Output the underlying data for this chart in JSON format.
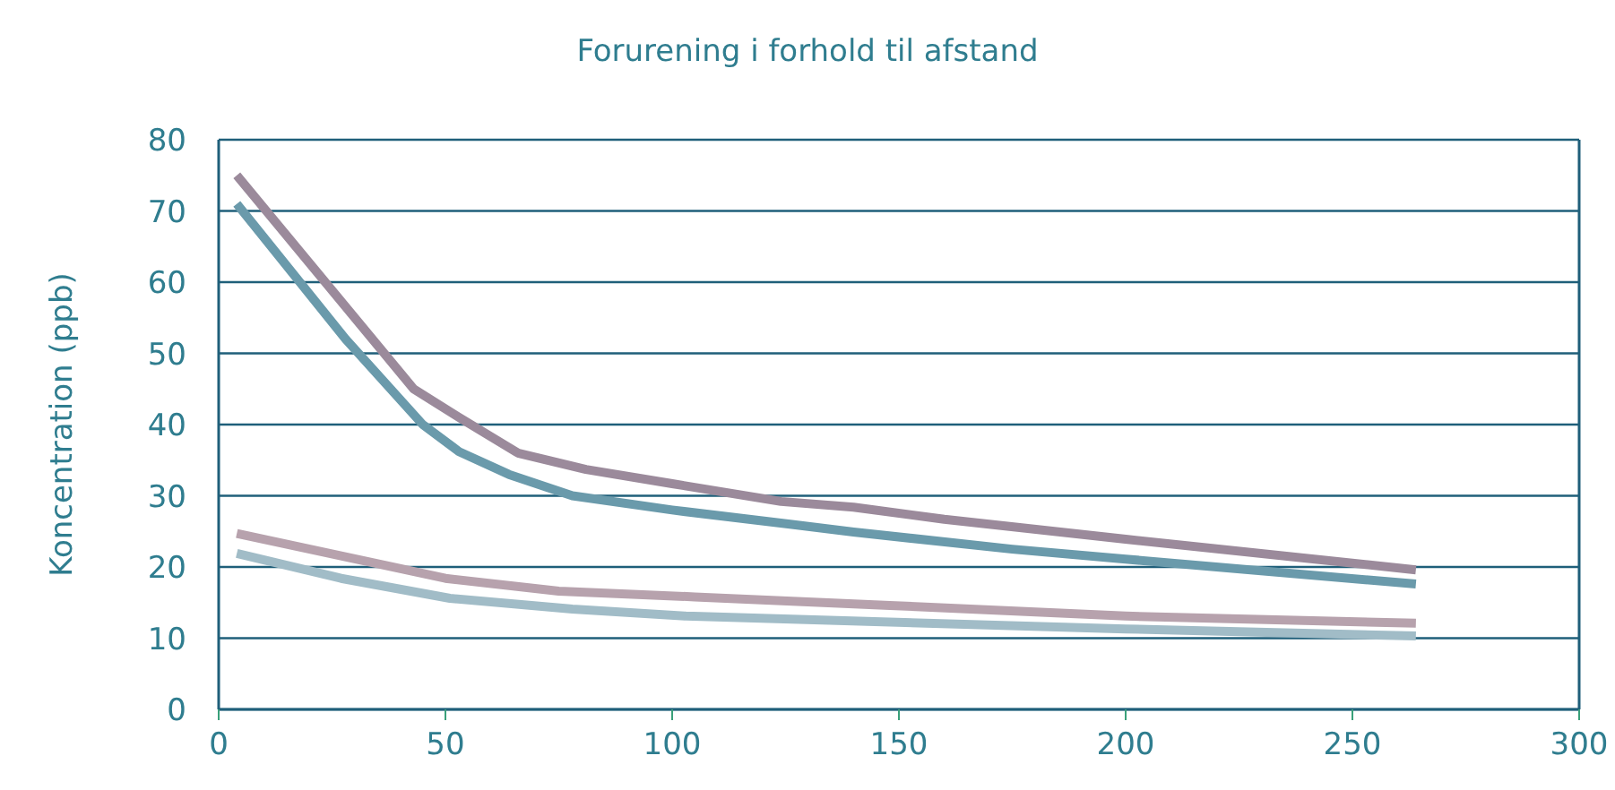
{
  "chart_data": {
    "type": "line",
    "title": "Forurening i forhold til afstand",
    "ylabel": "Koncentration (ppb)",
    "xlim": [
      0,
      300
    ],
    "xticks": [
      0,
      50,
      100,
      150,
      200,
      250,
      300
    ],
    "ylim": [
      0,
      80
    ],
    "yticks": [
      0,
      10,
      20,
      30,
      40,
      50,
      60,
      70,
      80
    ],
    "grid": "y",
    "marker": "none",
    "line_style": "solid",
    "series": [
      {
        "color": "#9b8a9b",
        "x": [
          4,
          30,
          43,
          53,
          66,
          81,
          100,
          124,
          140,
          160,
          200,
          264
        ],
        "values": [
          75,
          55,
          45,
          41,
          36,
          33.7,
          31.7,
          29.2,
          28.4,
          26.7,
          23.9,
          19.6
        ]
      },
      {
        "color": "#6a9aab",
        "x": [
          4,
          28,
          45,
          53,
          64,
          78,
          100,
          126,
          140,
          175,
          200,
          264
        ],
        "values": [
          71,
          52,
          40,
          36.2,
          33,
          30,
          28,
          26,
          24.9,
          22.5,
          21.1,
          17.6
        ]
      },
      {
        "color": "#b7a2ad",
        "x": [
          4,
          50,
          75,
          105,
          148,
          200,
          264
        ],
        "values": [
          24.7,
          18.4,
          16.6,
          15.8,
          14.6,
          13.1,
          12.1
        ]
      },
      {
        "color": "#a1bcc7",
        "x": [
          4,
          27,
          51,
          78,
          103,
          200,
          264
        ],
        "values": [
          21.9,
          18.4,
          15.6,
          14.1,
          13.1,
          11.3,
          10.3
        ]
      }
    ]
  }
}
